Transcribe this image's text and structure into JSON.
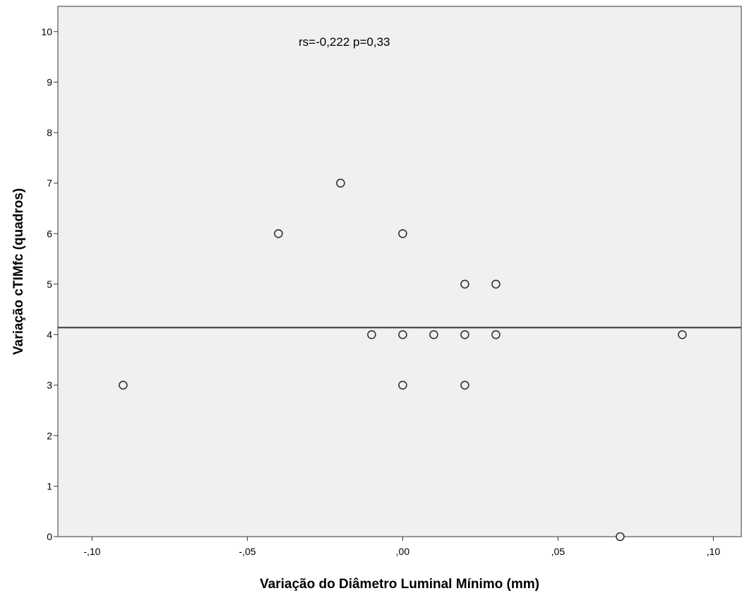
{
  "chart_data": {
    "type": "scatter",
    "xlabel": "Variação do Diâmetro Luminal Mínimo (mm)",
    "ylabel": "Variação cTIMfc (quadros)",
    "annotation": "rs=-0,222  p=0,33",
    "xlim": [
      -0.111,
      0.109
    ],
    "ylim": [
      0,
      10.5
    ],
    "x_ticks": [
      {
        "value": -0.1,
        "label": "-,10"
      },
      {
        "value": -0.05,
        "label": "-,05"
      },
      {
        "value": 0.0,
        "label": ",00"
      },
      {
        "value": 0.05,
        "label": ",05"
      },
      {
        "value": 0.1,
        "label": ",10"
      }
    ],
    "y_ticks": [
      {
        "value": 0,
        "label": "0"
      },
      {
        "value": 1,
        "label": "1"
      },
      {
        "value": 2,
        "label": "2"
      },
      {
        "value": 3,
        "label": "3"
      },
      {
        "value": 4,
        "label": "4"
      },
      {
        "value": 5,
        "label": "5"
      },
      {
        "value": 6,
        "label": "6"
      },
      {
        "value": 7,
        "label": "7"
      },
      {
        "value": 8,
        "label": "8"
      },
      {
        "value": 9,
        "label": "9"
      },
      {
        "value": 10,
        "label": "10"
      }
    ],
    "points": [
      {
        "x": -0.09,
        "y": 3
      },
      {
        "x": -0.04,
        "y": 6
      },
      {
        "x": -0.02,
        "y": 7
      },
      {
        "x": -0.01,
        "y": 4
      },
      {
        "x": 0.0,
        "y": 6
      },
      {
        "x": 0.0,
        "y": 4
      },
      {
        "x": 0.0,
        "y": 3
      },
      {
        "x": 0.01,
        "y": 4
      },
      {
        "x": 0.02,
        "y": 5
      },
      {
        "x": 0.02,
        "y": 4
      },
      {
        "x": 0.02,
        "y": 3
      },
      {
        "x": 0.03,
        "y": 5
      },
      {
        "x": 0.03,
        "y": 4
      },
      {
        "x": 0.07,
        "y": 0
      },
      {
        "x": 0.09,
        "y": 4
      }
    ],
    "reference_line_y": 4.14,
    "grid": false,
    "colors": {
      "plot_background": "#f0f0f0",
      "marker_fill": "#f0f0f0",
      "marker_stroke": "#333333",
      "line": "#333333"
    }
  }
}
